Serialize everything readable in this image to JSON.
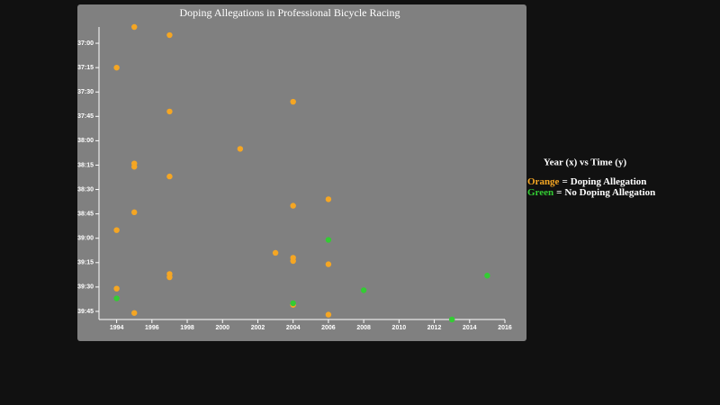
{
  "chart_data": {
    "type": "scatter",
    "title": "Doping Allegations in Professional Bicycle Racing",
    "legend_title": "Year (x) vs Time (y)",
    "legend_joiner": "=",
    "xlim": [
      1993,
      2016
    ],
    "xticks": [
      1994,
      1996,
      1998,
      2000,
      2002,
      2004,
      2006,
      2008,
      2010,
      2012,
      2014,
      2016
    ],
    "ylim": [
      2210,
      2390
    ],
    "yticks": [
      {
        "value": 2220,
        "label": "37:00"
      },
      {
        "value": 2235,
        "label": "37:15"
      },
      {
        "value": 2250,
        "label": "37:30"
      },
      {
        "value": 2265,
        "label": "37:45"
      },
      {
        "value": 2280,
        "label": "38:00"
      },
      {
        "value": 2295,
        "label": "38:15"
      },
      {
        "value": 2310,
        "label": "38:30"
      },
      {
        "value": 2325,
        "label": "38:45"
      },
      {
        "value": 2340,
        "label": "39:00"
      },
      {
        "value": 2355,
        "label": "39:15"
      },
      {
        "value": 2370,
        "label": "39:30"
      },
      {
        "value": 2385,
        "label": "39:45"
      }
    ],
    "series": [
      {
        "name": "Doping Allegation",
        "color_label": "Orange",
        "color": "#f5a623",
        "x": [
          1995,
          1997,
          1994,
          2004,
          1997,
          2001,
          1995,
          1995,
          1997,
          2006,
          2004,
          1995,
          1994,
          2003,
          2004,
          2004,
          2006,
          1997,
          1997,
          1994,
          2004,
          1995,
          2006
        ],
        "values": [
          2210,
          2215,
          2235,
          2256,
          2262,
          2285,
          2294,
          2296,
          2302,
          2316,
          2320,
          2324,
          2335,
          2349,
          2352,
          2354,
          2356,
          2362,
          2364,
          2371,
          2381,
          2386,
          2387
        ]
      },
      {
        "name": "No Doping Allegation",
        "color_label": "Green",
        "color": "#33cc33",
        "x": [
          2006,
          2015,
          2008,
          1994,
          2004,
          2013
        ],
        "values": [
          2341,
          2363,
          2372,
          2377,
          2380,
          2390
        ]
      }
    ]
  }
}
